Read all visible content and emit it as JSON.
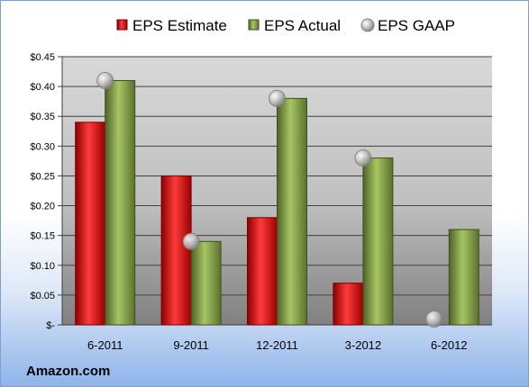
{
  "chart_data": {
    "type": "bar",
    "categories": [
      "6-2011",
      "9-2011",
      "12-2011",
      "3-2012",
      "6-2012"
    ],
    "series": [
      {
        "name": "EPS Estimate",
        "type": "bar",
        "color": "#c00000",
        "values": [
          0.34,
          0.25,
          0.18,
          0.07,
          null
        ]
      },
      {
        "name": "EPS Actual",
        "type": "bar",
        "color": "#77933c",
        "values": [
          0.41,
          0.14,
          0.38,
          0.28,
          0.16
        ]
      },
      {
        "name": "EPS GAAP",
        "type": "scatter",
        "color": "#a6a6a6",
        "values": [
          0.41,
          0.14,
          0.38,
          0.28,
          0.01
        ]
      }
    ],
    "ylim": [
      0,
      0.45
    ],
    "yticks": [
      0,
      0.05,
      0.1,
      0.15,
      0.2,
      0.25,
      0.3,
      0.35,
      0.4,
      0.45
    ],
    "ytick_labels": [
      "$-",
      "$0.05",
      "$0.10",
      "$0.15",
      "$0.20",
      "$0.25",
      "$0.30",
      "$0.35",
      "$0.40",
      "$0.45"
    ],
    "grid": true,
    "legend_position": "top"
  },
  "brand_label": "Amazon.com"
}
